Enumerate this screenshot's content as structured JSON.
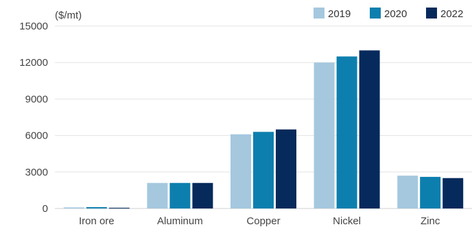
{
  "chart_data": {
    "type": "bar",
    "unit_label": "($/mt)",
    "categories": [
      "Iron ore",
      "Aluminum",
      "Copper",
      "Nickel",
      "Zinc"
    ],
    "series": [
      {
        "name": "2019",
        "color": "#a5c8df",
        "values": [
          90,
          2100,
          6100,
          12000,
          2700
        ]
      },
      {
        "name": "2020",
        "color": "#0d7fae",
        "values": [
          110,
          2100,
          6300,
          12500,
          2600
        ]
      },
      {
        "name": "2022",
        "color": "#062a5c",
        "values": [
          60,
          2100,
          6500,
          13000,
          2500
        ]
      }
    ],
    "yticks": [
      "0",
      "3000",
      "6000",
      "9000",
      "12000",
      "15000"
    ],
    "ylim": [
      0,
      15000
    ],
    "grid": true,
    "legend_position": "top-right"
  }
}
